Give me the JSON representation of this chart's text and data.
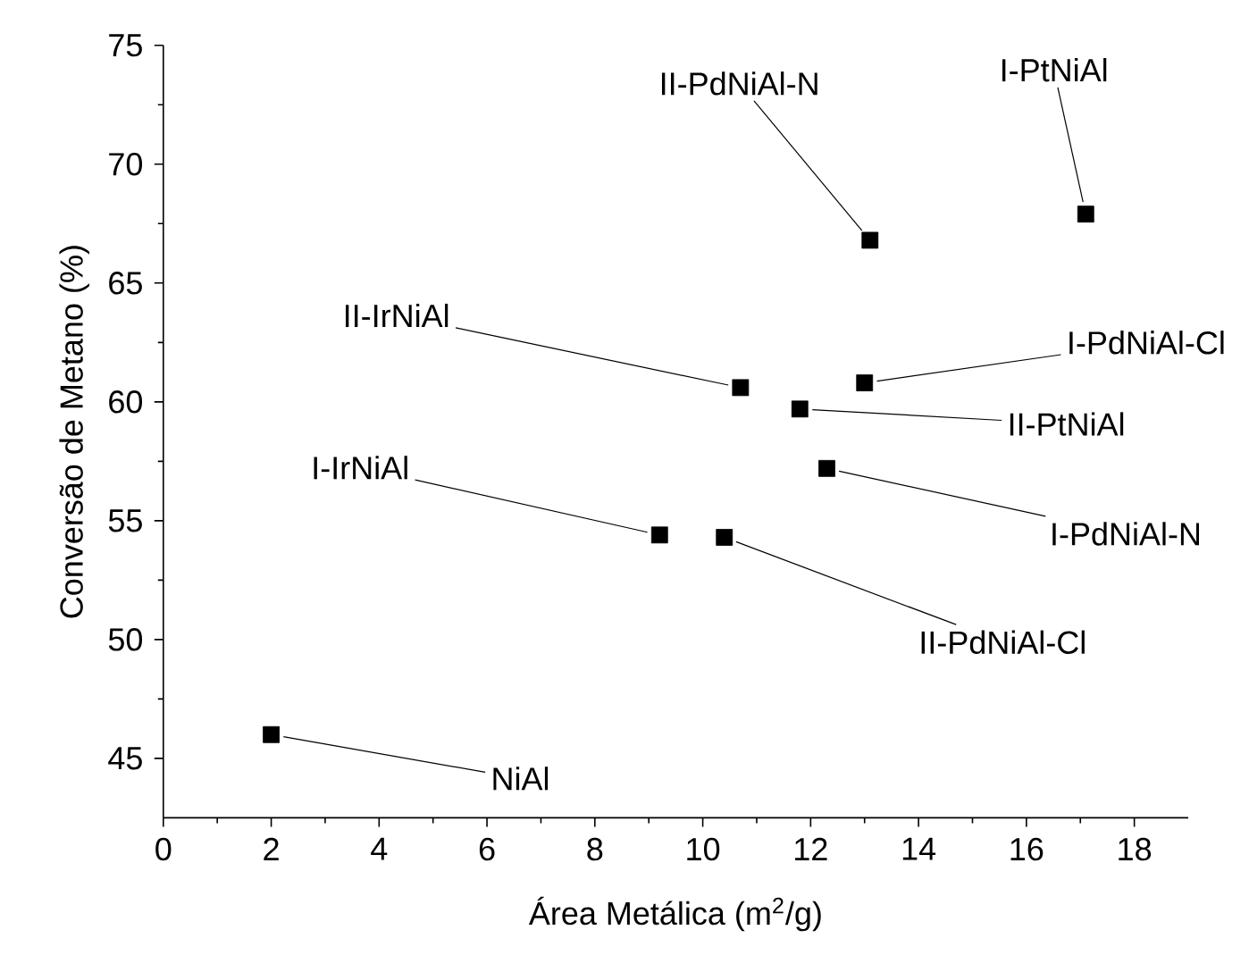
{
  "chart_data": {
    "type": "scatter",
    "xlabel": "Área Metálica (m$^{2}$/g)",
    "ylabel": "Conversão de Metano (%)",
    "x": [
      13.1,
      17.1,
      10.7,
      13.0,
      11.8,
      12.3,
      9.2,
      10.4,
      2.0
    ],
    "values": [
      66.8,
      67.9,
      60.6,
      60.8,
      59.7,
      57.2,
      54.4,
      54.3,
      46.0
    ],
    "color": "#000000",
    "marker": "square",
    "xlim": [
      0,
      19
    ],
    "ylim": [
      42.5,
      75
    ],
    "xticks": [
      0,
      2,
      4,
      6,
      8,
      10,
      12,
      14,
      16,
      18
    ],
    "yticks": [
      45,
      50,
      55,
      60,
      65,
      70,
      75
    ],
    "annotations": [
      {
        "text": "II-PdNiAl-N",
        "x": 13.1,
        "y": 66.8
      },
      {
        "text": "I-PtNiAl",
        "x": 17.1,
        "y": 67.9
      },
      {
        "text": "II-IrNiAl",
        "x": 10.7,
        "y": 60.6
      },
      {
        "text": "I-PdNiAl-Cl",
        "x": 13.0,
        "y": 60.8
      },
      {
        "text": "II-PtNiAl",
        "x": 11.8,
        "y": 59.7
      },
      {
        "text": "I-PdNiAl-N",
        "x": 12.3,
        "y": 57.2
      },
      {
        "text": "I-IrNiAl",
        "x": 9.2,
        "y": 54.4
      },
      {
        "text": "II-PdNiAl-Cl",
        "x": 10.4,
        "y": 54.3
      },
      {
        "text": "NiAl",
        "x": 2.0,
        "y": 46.0
      }
    ]
  }
}
